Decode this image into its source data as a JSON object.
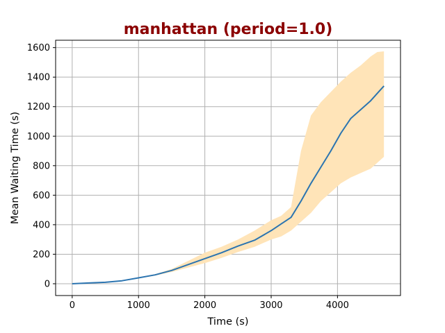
{
  "chart_data": {
    "type": "line",
    "title": "manhattan (period=1.0)",
    "xlabel": "Time (s)",
    "ylabel": "Mean Waiting Time (s)",
    "xlim": [
      -250,
      4950
    ],
    "ylim": [
      -80,
      1650
    ],
    "xticks": [
      0,
      1000,
      2000,
      3000,
      4000
    ],
    "yticks": [
      0,
      200,
      400,
      600,
      800,
      1000,
      1200,
      1400,
      1600
    ],
    "grid": true,
    "colors": {
      "title": "#8b0000",
      "line": "#2b74b0",
      "band": "#ffe4b8",
      "grid": "#b0b0b0"
    },
    "series": [
      {
        "x": [
          0,
          250,
          500,
          750,
          1000,
          1250,
          1500,
          1750,
          2000,
          2250,
          2500,
          2750,
          3000,
          3150,
          3300,
          3450,
          3600,
          3750,
          3900,
          4050,
          4200,
          4350,
          4500,
          4600,
          4700
        ],
        "y": [
          0,
          5,
          10,
          20,
          40,
          60,
          90,
          130,
          170,
          210,
          255,
          295,
          360,
          405,
          450,
          560,
          680,
          790,
          900,
          1020,
          1120,
          1180,
          1240,
          1290,
          1340
        ],
        "upper": [
          0,
          5,
          11,
          22,
          43,
          65,
          100,
          155,
          210,
          250,
          300,
          360,
          430,
          460,
          520,
          900,
          1140,
          1230,
          1300,
          1370,
          1430,
          1480,
          1540,
          1570,
          1575
        ],
        "lower": [
          0,
          5,
          9,
          18,
          37,
          55,
          80,
          110,
          140,
          175,
          215,
          250,
          300,
          320,
          360,
          420,
          480,
          560,
          620,
          680,
          720,
          750,
          780,
          820,
          860
        ]
      }
    ]
  }
}
